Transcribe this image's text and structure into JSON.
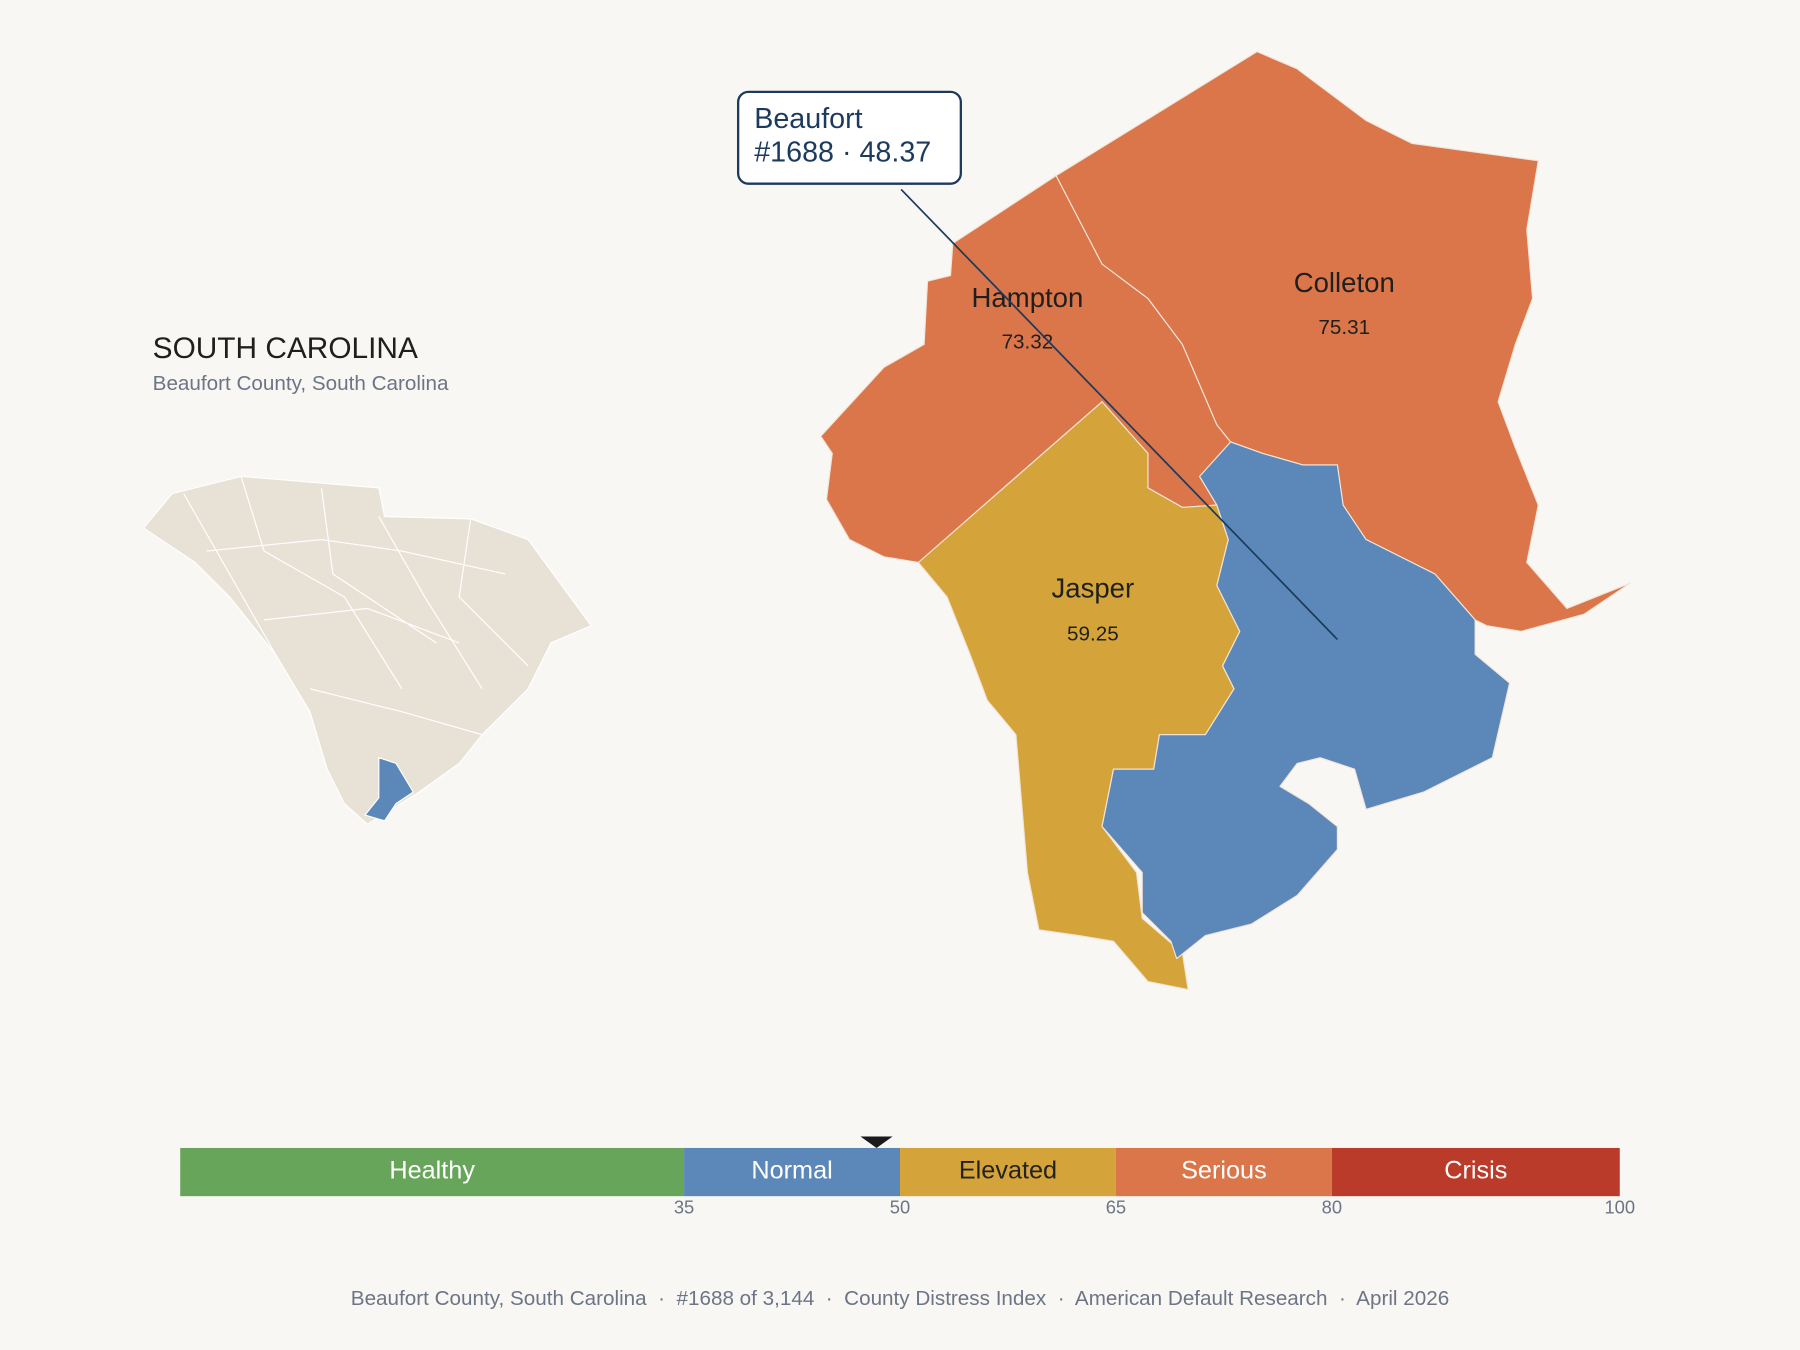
{
  "header": {
    "title": "SOUTH CAROLINA",
    "subtitle": "Beaufort County, South Carolina"
  },
  "callout": {
    "lines": [
      "Beaufort",
      "#1688 · 48.37"
    ]
  },
  "counties": [
    {
      "name": "Hampton",
      "score": 73.32,
      "color": "#da764a"
    },
    {
      "name": "Colleton",
      "score": 75.31,
      "color": "#da764a"
    },
    {
      "name": "Jasper",
      "score": 59.25,
      "color": "#d4a43b"
    },
    {
      "name": "Beaufort",
      "score": 48.37,
      "color": "#5b88b8"
    }
  ],
  "scale": {
    "lim": [
      0,
      100
    ],
    "ticks": [
      35,
      50,
      65,
      80,
      100
    ],
    "marker": 48.37,
    "bands": [
      {
        "label": "Healthy",
        "color": "#67a65a",
        "text_color": "#ffffff"
      },
      {
        "label": "Normal",
        "color": "#5b88b8",
        "text_color": "#ffffff"
      },
      {
        "label": "Elevated",
        "color": "#d4a43b",
        "text_color": "#222222"
      },
      {
        "label": "Serious",
        "color": "#da764a",
        "text_color": "#ffffff"
      },
      {
        "label": "Crisis",
        "color": "#bb3b2b",
        "text_color": "#ffffff"
      }
    ]
  },
  "footer": "Beaufort County, South Carolina  ·  #1688 of 3,144  ·  County Distress Index  ·  American Default Research  ·  April 2026"
}
